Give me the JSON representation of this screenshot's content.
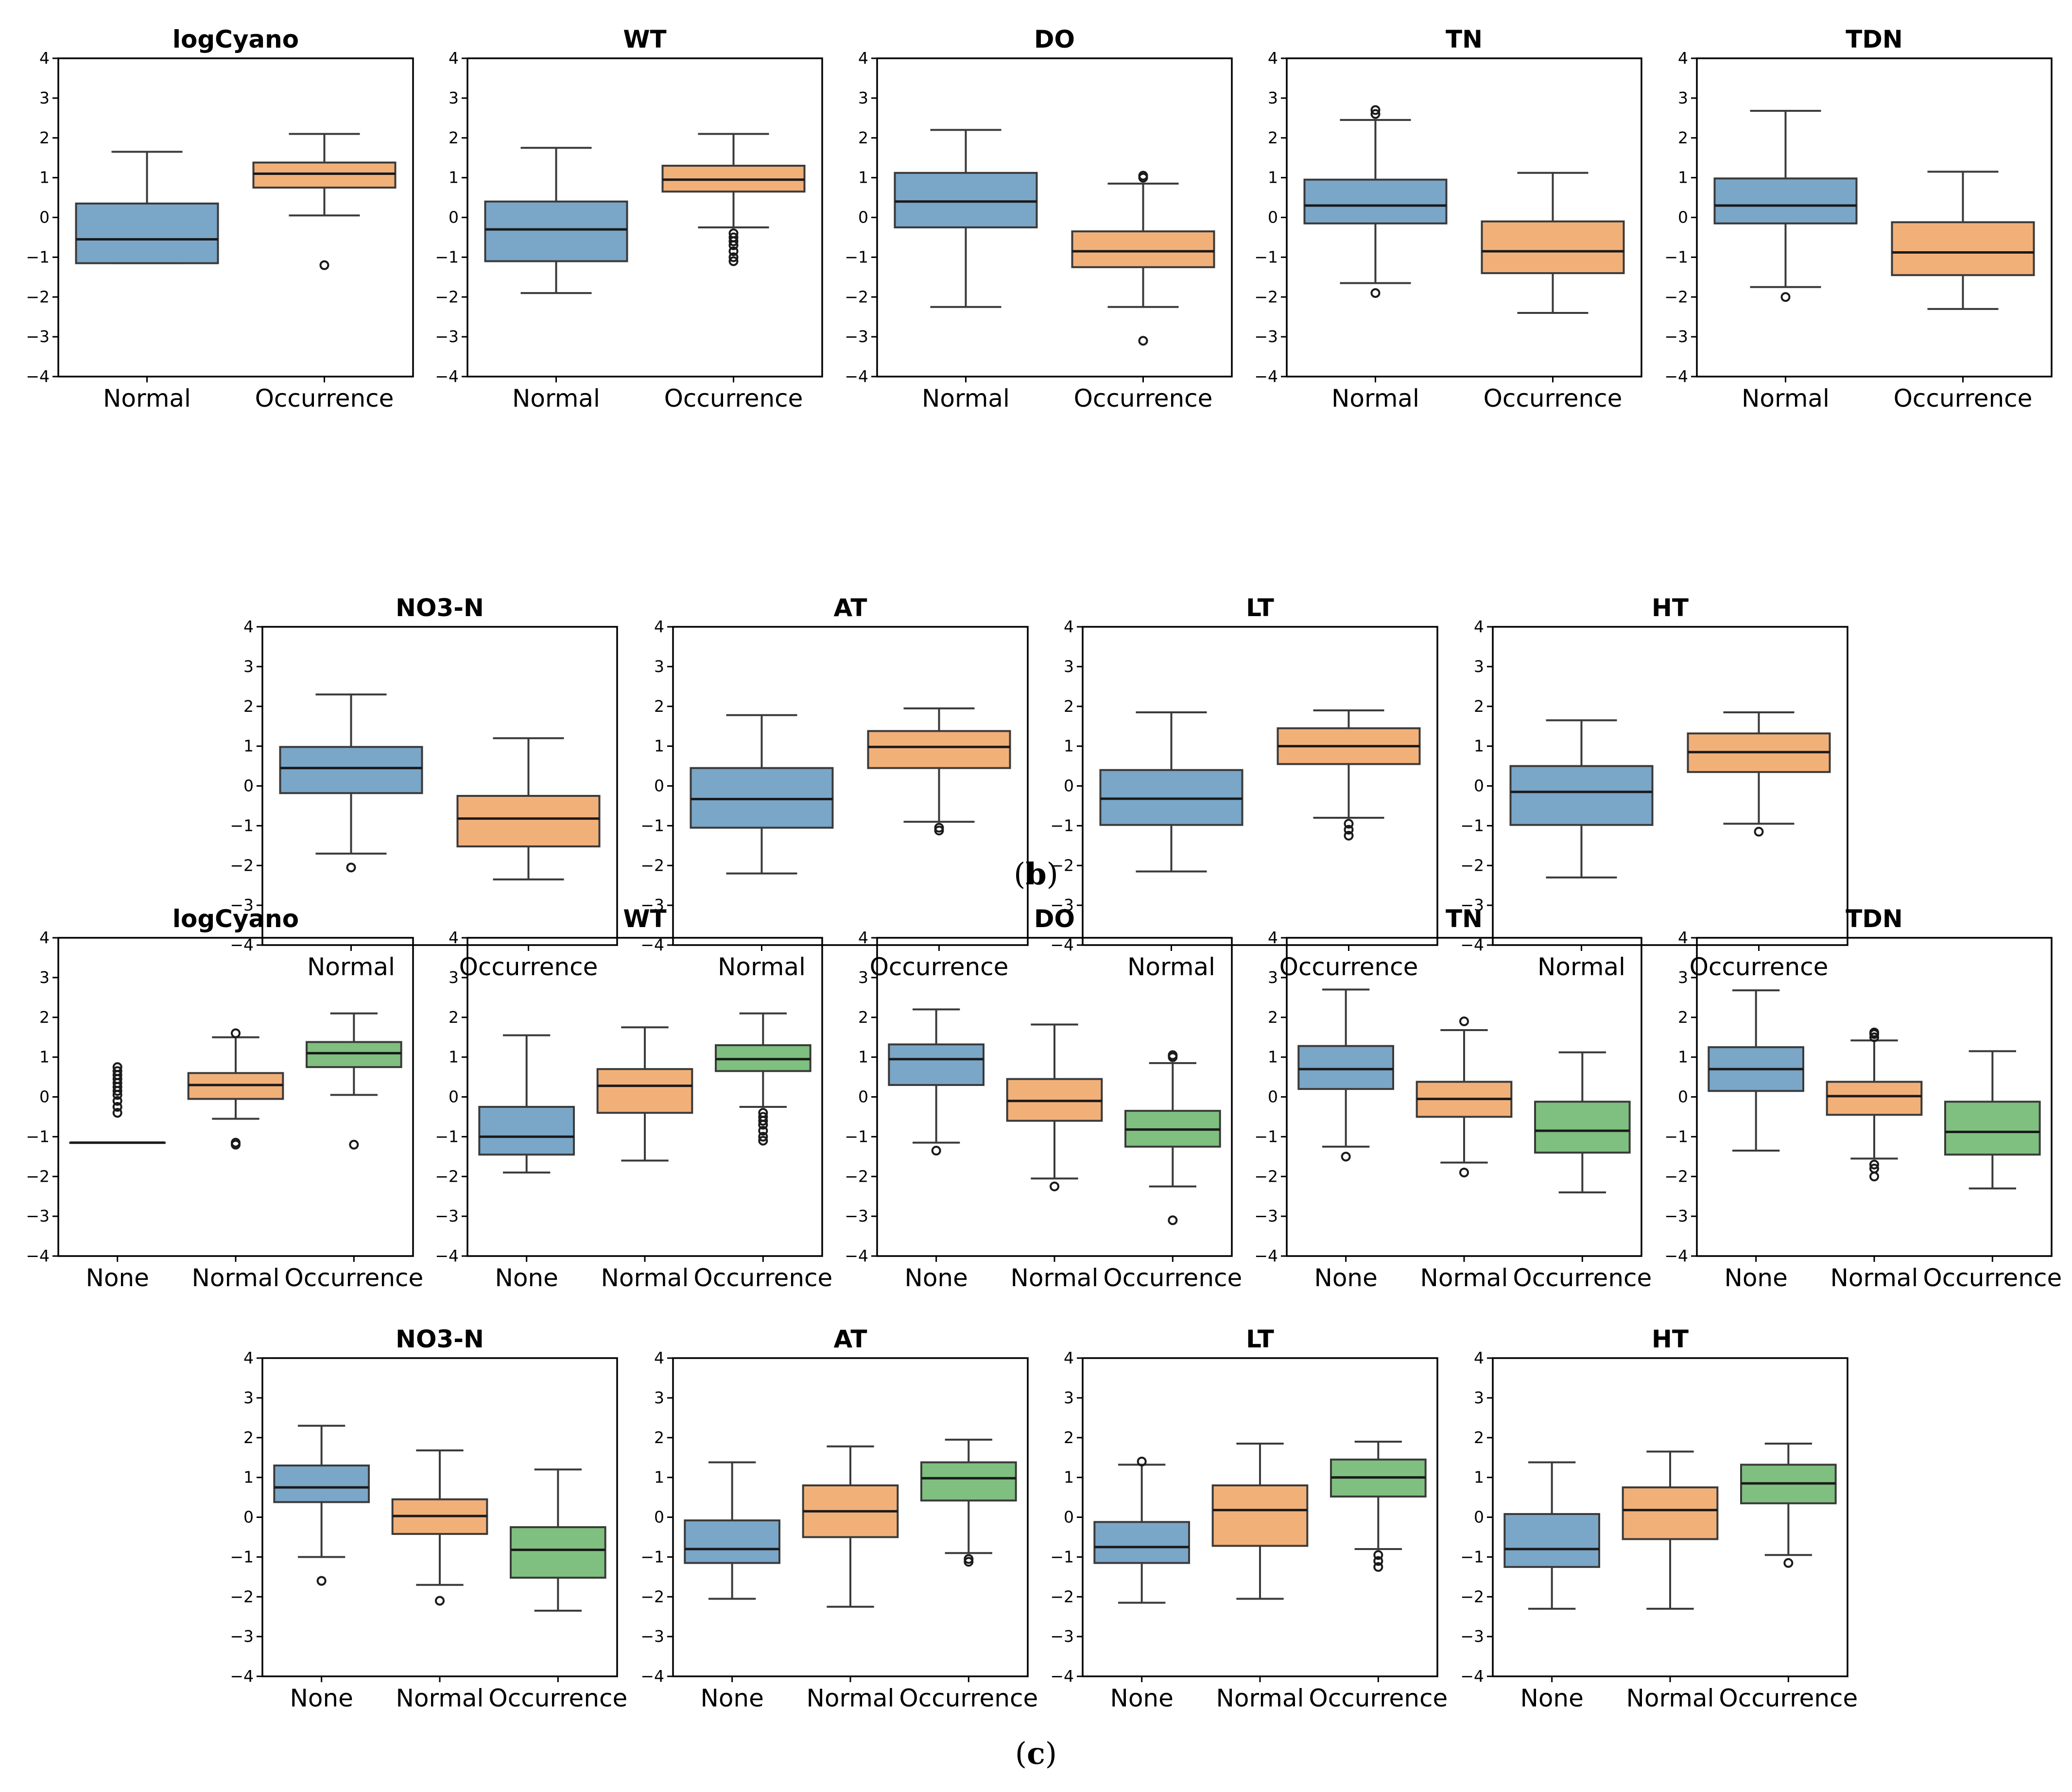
{
  "colors": {
    "blue": "#7aa6c8",
    "orange": "#f2b079",
    "green": "#7fbf7f"
  },
  "panel_labels": [
    {
      "open": "(",
      "letter": "b",
      "close": ")"
    },
    {
      "open": "(",
      "letter": "c",
      "close": ")"
    }
  ],
  "chart_data": [
    {
      "group": "b",
      "type": "box",
      "ylim": [
        -4,
        4
      ],
      "yticks": [
        4,
        3,
        2,
        1,
        0,
        -1,
        -2,
        -3,
        -4
      ],
      "categories": [
        "Normal",
        "Occurrence"
      ],
      "panels": [
        {
          "title": "logCyano",
          "boxes": [
            {
              "category": "Normal",
              "color": "blue",
              "lo": -1.15,
              "q1": -1.15,
              "med": -0.55,
              "q3": 0.35,
              "hi": 1.65,
              "fliers": []
            },
            {
              "category": "Occurrence",
              "color": "orange",
              "lo": 0.05,
              "q1": 0.75,
              "med": 1.1,
              "q3": 1.38,
              "hi": 2.1,
              "fliers": [
                -1.2
              ]
            }
          ]
        },
        {
          "title": "WT",
          "boxes": [
            {
              "category": "Normal",
              "color": "blue",
              "lo": -1.9,
              "q1": -1.1,
              "med": -0.3,
              "q3": 0.4,
              "hi": 1.75,
              "fliers": []
            },
            {
              "category": "Occurrence",
              "color": "orange",
              "lo": -0.25,
              "q1": 0.65,
              "med": 0.95,
              "q3": 1.3,
              "hi": 2.1,
              "fliers": [
                -0.4,
                -0.5,
                -0.6,
                -0.7,
                -0.85,
                -1.0,
                -1.1
              ]
            }
          ]
        },
        {
          "title": "DO",
          "boxes": [
            {
              "category": "Normal",
              "color": "blue",
              "lo": -2.25,
              "q1": -0.25,
              "med": 0.4,
              "q3": 1.12,
              "hi": 2.2,
              "fliers": []
            },
            {
              "category": "Occurrence",
              "color": "orange",
              "lo": -2.25,
              "q1": -1.25,
              "med": -0.85,
              "q3": -0.35,
              "hi": 0.85,
              "fliers": [
                1.0,
                1.05,
                -3.1
              ]
            }
          ]
        },
        {
          "title": "TN",
          "boxes": [
            {
              "category": "Normal",
              "color": "blue",
              "lo": -1.65,
              "q1": -0.15,
              "med": 0.3,
              "q3": 0.95,
              "hi": 2.45,
              "fliers": [
                2.6,
                2.7,
                -1.9
              ]
            },
            {
              "category": "Occurrence",
              "color": "orange",
              "lo": -2.4,
              "q1": -1.4,
              "med": -0.85,
              "q3": -0.1,
              "hi": 1.12,
              "fliers": []
            }
          ]
        },
        {
          "title": "TDN",
          "boxes": [
            {
              "category": "Normal",
              "color": "blue",
              "lo": -1.75,
              "q1": -0.15,
              "med": 0.3,
              "q3": 0.98,
              "hi": 2.68,
              "fliers": [
                -2.0
              ]
            },
            {
              "category": "Occurrence",
              "color": "orange",
              "lo": -2.3,
              "q1": -1.45,
              "med": -0.88,
              "q3": -0.12,
              "hi": 1.15,
              "fliers": []
            }
          ]
        },
        {
          "title": "NO3-N",
          "boxes": [
            {
              "category": "Normal",
              "color": "blue",
              "lo": -1.7,
              "q1": -0.18,
              "med": 0.45,
              "q3": 0.98,
              "hi": 2.3,
              "fliers": [
                -2.05
              ]
            },
            {
              "category": "Occurrence",
              "color": "orange",
              "lo": -2.35,
              "q1": -1.52,
              "med": -0.82,
              "q3": -0.25,
              "hi": 1.2,
              "fliers": []
            }
          ]
        },
        {
          "title": "AT",
          "boxes": [
            {
              "category": "Normal",
              "color": "blue",
              "lo": -2.2,
              "q1": -1.05,
              "med": -0.33,
              "q3": 0.45,
              "hi": 1.78,
              "fliers": []
            },
            {
              "category": "Occurrence",
              "color": "orange",
              "lo": -0.9,
              "q1": 0.45,
              "med": 0.98,
              "q3": 1.38,
              "hi": 1.95,
              "fliers": [
                -1.05,
                -1.12
              ]
            }
          ]
        },
        {
          "title": "LT",
          "boxes": [
            {
              "category": "Normal",
              "color": "blue",
              "lo": -2.15,
              "q1": -0.98,
              "med": -0.32,
              "q3": 0.4,
              "hi": 1.85,
              "fliers": []
            },
            {
              "category": "Occurrence",
              "color": "orange",
              "lo": -0.8,
              "q1": 0.55,
              "med": 1.0,
              "q3": 1.45,
              "hi": 1.9,
              "fliers": [
                -0.95,
                -1.1,
                -1.25
              ]
            }
          ]
        },
        {
          "title": "HT",
          "boxes": [
            {
              "category": "Normal",
              "color": "blue",
              "lo": -2.3,
              "q1": -0.98,
              "med": -0.15,
              "q3": 0.5,
              "hi": 1.65,
              "fliers": []
            },
            {
              "category": "Occurrence",
              "color": "orange",
              "lo": -0.95,
              "q1": 0.35,
              "med": 0.85,
              "q3": 1.32,
              "hi": 1.85,
              "fliers": [
                -1.15
              ]
            }
          ]
        }
      ]
    },
    {
      "group": "c",
      "type": "box",
      "ylim": [
        -4,
        4
      ],
      "yticks": [
        4,
        3,
        2,
        1,
        0,
        -1,
        -2,
        -3,
        -4
      ],
      "categories": [
        "None",
        "Normal",
        "Occurrence"
      ],
      "panels": [
        {
          "title": "logCyano",
          "boxes": [
            {
              "category": "None",
              "color": "blue",
              "lo": -1.15,
              "q1": -1.15,
              "med": -1.15,
              "q3": -1.15,
              "hi": -1.15,
              "fliers": [
                0.75,
                0.65,
                0.55,
                0.45,
                0.35,
                0.25,
                0.15,
                0.05,
                -0.1,
                -0.25,
                -0.4
              ]
            },
            {
              "category": "Normal",
              "color": "orange",
              "lo": -0.55,
              "q1": -0.05,
              "med": 0.3,
              "q3": 0.6,
              "hi": 1.5,
              "fliers": [
                1.6,
                -1.15,
                -1.2
              ]
            },
            {
              "category": "Occurrence",
              "color": "green",
              "lo": 0.05,
              "q1": 0.75,
              "med": 1.1,
              "q3": 1.38,
              "hi": 2.1,
              "fliers": [
                -1.2
              ]
            }
          ]
        },
        {
          "title": "WT",
          "boxes": [
            {
              "category": "None",
              "color": "blue",
              "lo": -1.9,
              "q1": -1.45,
              "med": -1.0,
              "q3": -0.25,
              "hi": 1.55,
              "fliers": []
            },
            {
              "category": "Normal",
              "color": "orange",
              "lo": -1.6,
              "q1": -0.4,
              "med": 0.28,
              "q3": 0.7,
              "hi": 1.75,
              "fliers": []
            },
            {
              "category": "Occurrence",
              "color": "green",
              "lo": -0.25,
              "q1": 0.65,
              "med": 0.95,
              "q3": 1.3,
              "hi": 2.1,
              "fliers": [
                -0.4,
                -0.5,
                -0.6,
                -0.7,
                -0.85,
                -1.0,
                -1.1
              ]
            }
          ]
        },
        {
          "title": "DO",
          "boxes": [
            {
              "category": "None",
              "color": "blue",
              "lo": -1.15,
              "q1": 0.3,
              "med": 0.95,
              "q3": 1.32,
              "hi": 2.2,
              "fliers": [
                -1.35
              ]
            },
            {
              "category": "Normal",
              "color": "orange",
              "lo": -2.05,
              "q1": -0.6,
              "med": -0.1,
              "q3": 0.45,
              "hi": 1.82,
              "fliers": [
                -2.25
              ]
            },
            {
              "category": "Occurrence",
              "color": "green",
              "lo": -2.25,
              "q1": -1.25,
              "med": -0.82,
              "q3": -0.35,
              "hi": 0.85,
              "fliers": [
                1.0,
                1.05,
                -3.1
              ]
            }
          ]
        },
        {
          "title": "TN",
          "boxes": [
            {
              "category": "None",
              "color": "blue",
              "lo": -1.25,
              "q1": 0.2,
              "med": 0.7,
              "q3": 1.28,
              "hi": 2.7,
              "fliers": [
                -1.5
              ]
            },
            {
              "category": "Normal",
              "color": "orange",
              "lo": -1.65,
              "q1": -0.5,
              "med": -0.05,
              "q3": 0.38,
              "hi": 1.68,
              "fliers": [
                1.9,
                -1.9
              ]
            },
            {
              "category": "Occurrence",
              "color": "green",
              "lo": -2.4,
              "q1": -1.4,
              "med": -0.85,
              "q3": -0.12,
              "hi": 1.12,
              "fliers": []
            }
          ]
        },
        {
          "title": "TDN",
          "boxes": [
            {
              "category": "None",
              "color": "blue",
              "lo": -1.35,
              "q1": 0.15,
              "med": 0.7,
              "q3": 1.25,
              "hi": 2.68,
              "fliers": []
            },
            {
              "category": "Normal",
              "color": "orange",
              "lo": -1.55,
              "q1": -0.45,
              "med": 0.02,
              "q3": 0.38,
              "hi": 1.42,
              "fliers": [
                1.5,
                1.58,
                1.62,
                -1.7,
                -1.8,
                -2.0
              ]
            },
            {
              "category": "Occurrence",
              "color": "green",
              "lo": -2.3,
              "q1": -1.45,
              "med": -0.88,
              "q3": -0.12,
              "hi": 1.15,
              "fliers": []
            }
          ]
        },
        {
          "title": "NO3-N",
          "boxes": [
            {
              "category": "None",
              "color": "blue",
              "lo": -1.0,
              "q1": 0.38,
              "med": 0.75,
              "q3": 1.3,
              "hi": 2.3,
              "fliers": [
                -1.6
              ]
            },
            {
              "category": "Normal",
              "color": "orange",
              "lo": -1.7,
              "q1": -0.42,
              "med": 0.03,
              "q3": 0.45,
              "hi": 1.68,
              "fliers": [
                -2.1
              ]
            },
            {
              "category": "Occurrence",
              "color": "green",
              "lo": -2.35,
              "q1": -1.52,
              "med": -0.82,
              "q3": -0.25,
              "hi": 1.2,
              "fliers": []
            }
          ]
        },
        {
          "title": "AT",
          "boxes": [
            {
              "category": "None",
              "color": "blue",
              "lo": -2.05,
              "q1": -1.15,
              "med": -0.8,
              "q3": -0.08,
              "hi": 1.38,
              "fliers": []
            },
            {
              "category": "Normal",
              "color": "orange",
              "lo": -2.25,
              "q1": -0.5,
              "med": 0.15,
              "q3": 0.8,
              "hi": 1.78,
              "fliers": []
            },
            {
              "category": "Occurrence",
              "color": "green",
              "lo": -0.9,
              "q1": 0.42,
              "med": 0.98,
              "q3": 1.38,
              "hi": 1.95,
              "fliers": [
                -1.05,
                -1.12
              ]
            }
          ]
        },
        {
          "title": "LT",
          "boxes": [
            {
              "category": "None",
              "color": "blue",
              "lo": -2.15,
              "q1": -1.15,
              "med": -0.75,
              "q3": -0.12,
              "hi": 1.32,
              "fliers": [
                1.4
              ]
            },
            {
              "category": "Normal",
              "color": "orange",
              "lo": -2.05,
              "q1": -0.72,
              "med": 0.18,
              "q3": 0.8,
              "hi": 1.85,
              "fliers": []
            },
            {
              "category": "Occurrence",
              "color": "green",
              "lo": -0.8,
              "q1": 0.52,
              "med": 1.0,
              "q3": 1.45,
              "hi": 1.9,
              "fliers": [
                -0.95,
                -1.1,
                -1.25
              ]
            }
          ]
        },
        {
          "title": "HT",
          "boxes": [
            {
              "category": "None",
              "color": "blue",
              "lo": -2.3,
              "q1": -1.25,
              "med": -0.8,
              "q3": 0.08,
              "hi": 1.38,
              "fliers": []
            },
            {
              "category": "Normal",
              "color": "orange",
              "lo": -2.3,
              "q1": -0.55,
              "med": 0.18,
              "q3": 0.75,
              "hi": 1.65,
              "fliers": []
            },
            {
              "category": "Occurrence",
              "color": "green",
              "lo": -0.95,
              "q1": 0.35,
              "med": 0.85,
              "q3": 1.32,
              "hi": 1.85,
              "fliers": [
                -1.15
              ]
            }
          ]
        }
      ]
    }
  ]
}
